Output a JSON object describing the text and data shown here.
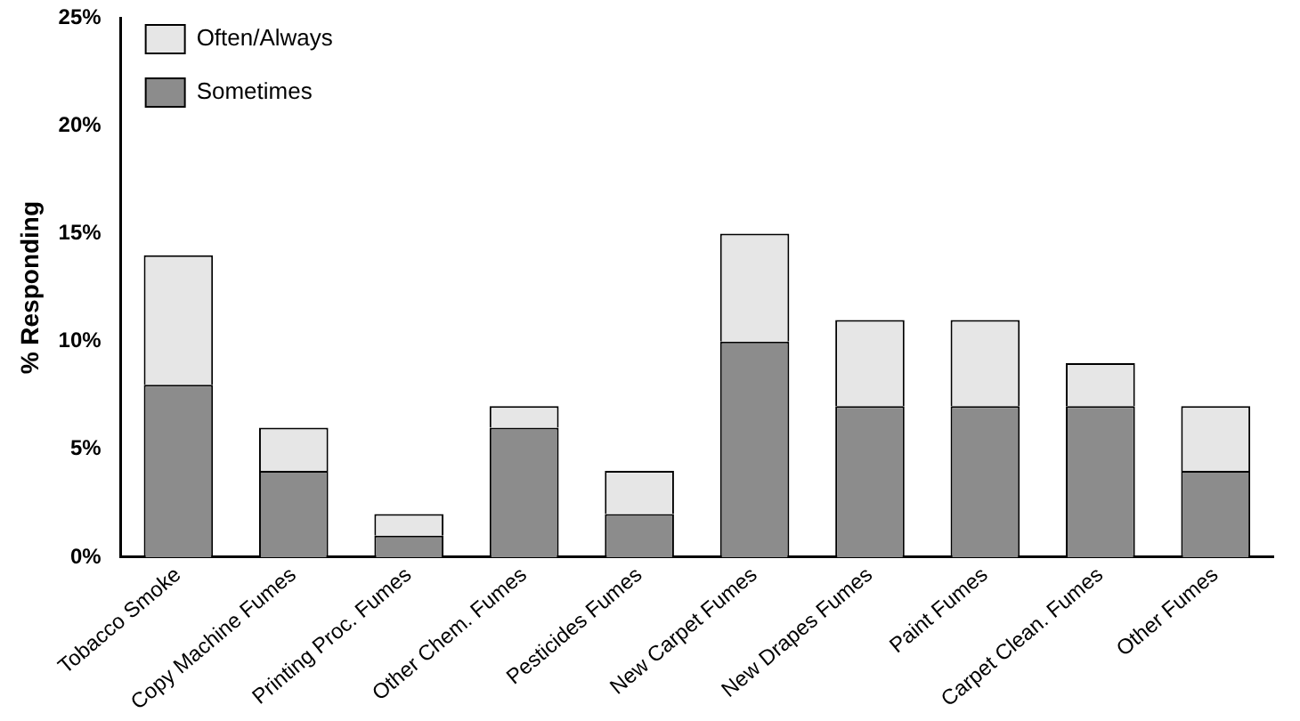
{
  "chart_data": {
    "type": "bar",
    "stacked": true,
    "ylabel": "% Responding",
    "categories": [
      "Tobacco Smoke",
      "Copy Machine Fumes",
      "Printing Proc. Fumes",
      "Other Chem. Fumes",
      "Pesticides Fumes",
      "New Carpet Fumes",
      "New Drapes Fumes",
      "Paint Fumes",
      "Carpet Clean. Fumes",
      "Other Fumes"
    ],
    "series": [
      {
        "name": "Sometimes",
        "color": "#8c8c8c",
        "values": [
          8,
          4,
          1,
          6,
          2,
          10,
          7,
          7,
          7,
          4
        ]
      },
      {
        "name": "Often/Always",
        "color": "#e6e6e6",
        "values": [
          6,
          2,
          1,
          1,
          2,
          5,
          4,
          4,
          2,
          3
        ]
      }
    ],
    "ylim": [
      0,
      25
    ],
    "yticks": [
      {
        "value": 0,
        "label": "0%"
      },
      {
        "value": 5,
        "label": "5%"
      },
      {
        "value": 10,
        "label": "10%"
      },
      {
        "value": 15,
        "label": "15%"
      },
      {
        "value": 20,
        "label": "20%"
      },
      {
        "value": 25,
        "label": "25%"
      }
    ],
    "grid": false,
    "legend": "top left"
  }
}
